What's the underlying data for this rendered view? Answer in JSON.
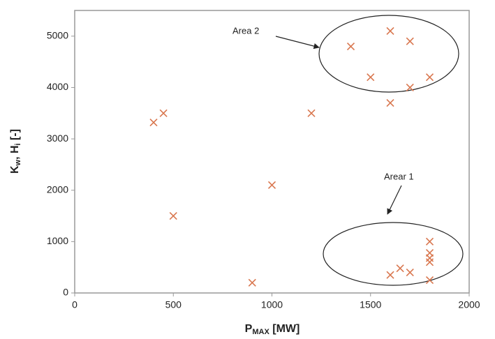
{
  "chart_data": {
    "type": "scatter",
    "x_label": [
      "P",
      "MAX",
      " [MW]"
    ],
    "y_label": [
      "K",
      "w",
      ", H",
      "i",
      " [-]"
    ],
    "x": [
      400,
      450,
      500,
      900,
      1000,
      1200,
      1400,
      1500,
      1600,
      1600,
      1700,
      1700,
      1800,
      1600,
      1650,
      1700,
      1800,
      1800,
      1800,
      1800,
      1800
    ],
    "values": [
      3320,
      3500,
      1500,
      200,
      2100,
      3500,
      4800,
      4200,
      5100,
      3700,
      4900,
      4000,
      4200,
      350,
      480,
      400,
      1000,
      780,
      680,
      600,
      250
    ],
    "color": "#d9774f",
    "xlim": [
      0,
      2000
    ],
    "xticks": [
      0,
      500,
      1000,
      1500,
      2000
    ],
    "ylim": [
      0,
      5500
    ],
    "yticks": [
      0,
      1000,
      2000,
      3000,
      4000,
      5000
    ],
    "annotations": [
      "Area 2",
      "Arear 1"
    ]
  }
}
